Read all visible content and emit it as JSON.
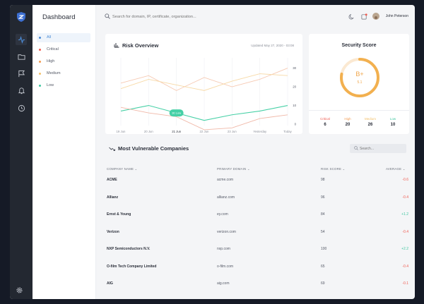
{
  "sidebar": {
    "icons": [
      "shield-logo-icon",
      "activity-icon",
      "folder-icon",
      "flag-icon",
      "bell-icon",
      "clock-icon",
      "gear-icon"
    ]
  },
  "filters": {
    "title": "Dashboard",
    "items": [
      {
        "label": "All",
        "color": "#4a8bd6",
        "active": true
      },
      {
        "label": "Critical",
        "color": "#ef5b50"
      },
      {
        "label": "High",
        "color": "#f39a4f"
      },
      {
        "label": "Medium",
        "color": "#f3c06a"
      },
      {
        "label": "Low",
        "color": "#3fc6a0"
      }
    ]
  },
  "topbar": {
    "search_placeholder": "Search for domain, IP, certificate, organization...",
    "user_name": "John Peterson"
  },
  "risk_overview": {
    "title": "Risk Overview",
    "updated": "Updated May 27, 2020 - 03:08",
    "tooltip": "30 Low",
    "chart_data": {
      "type": "line",
      "categories": [
        "19 Jun",
        "20 Jun",
        "21 Jun",
        "22 Jun",
        "23 Jun",
        "Yesterday",
        "Today"
      ],
      "y_ticks": [
        30,
        20,
        10,
        0
      ],
      "ylim": [
        0,
        34
      ],
      "y_tick_labels": [
        "30",
        "20",
        "10",
        "0"
      ],
      "highlight_category": "21 Jun",
      "series": [
        {
          "color": "#f6c9b2",
          "values": [
            22,
            26,
            18,
            25,
            20,
            24,
            30
          ]
        },
        {
          "color": "#f7d9a6",
          "values": [
            19,
            24,
            21,
            18,
            23,
            27,
            26
          ]
        },
        {
          "color": "#46d0a6",
          "values": [
            7,
            10,
            6,
            2,
            5,
            7,
            10
          ]
        },
        {
          "color": "#f0b8a8",
          "values": [
            9,
            6,
            4,
            -3,
            -2,
            3,
            5
          ]
        }
      ]
    }
  },
  "security_score": {
    "title": "Security Score",
    "grade": "B+",
    "sub": "5.1",
    "progress": 0.78,
    "stats": [
      {
        "label": "Critical",
        "value": "6",
        "color": "#ef5b50"
      },
      {
        "label": "High",
        "value": "20",
        "color": "#f39a4f"
      },
      {
        "label": "Medium",
        "value": "26",
        "color": "#f3c06a"
      },
      {
        "label": "Low",
        "value": "10",
        "color": "#3fc6a0"
      }
    ]
  },
  "companies": {
    "title": "Most Vulnerable Companies",
    "search_placeholder": "Search...",
    "headers": {
      "name": "COMPANY NAME ⌄",
      "domain": "PRIMARY DOMAIN ⌄",
      "score": "RISK SCORE ⌄",
      "avg": "AVERAGE ⌄"
    },
    "rows": [
      {
        "name": "ACME",
        "domain": "acme.com",
        "score": "98",
        "avg": "-0.6",
        "color": "#ef5b50"
      },
      {
        "name": "Allianz",
        "domain": "allianz.com",
        "score": "96",
        "avg": "-0.4",
        "color": "#ef5b50"
      },
      {
        "name": "Ernst & Young",
        "domain": "ey.com",
        "score": "84",
        "avg": "+1.2",
        "color": "#3fc6a0"
      },
      {
        "name": "Verizon",
        "domain": "verizon.com",
        "score": "54",
        "avg": "-0.4",
        "color": "#ef5b50"
      },
      {
        "name": "NXP Semiconductors N.V.",
        "domain": "nxp.com",
        "score": "100",
        "avg": "+2.2",
        "color": "#3fc6a0"
      },
      {
        "name": "O-film Tech Company Limited",
        "domain": "o-film.com",
        "score": "65",
        "avg": "-0.4",
        "color": "#ef5b50"
      },
      {
        "name": "AIG",
        "domain": "aig.com",
        "score": "69",
        "avg": "-0.1",
        "color": "#ef5b50"
      }
    ]
  }
}
